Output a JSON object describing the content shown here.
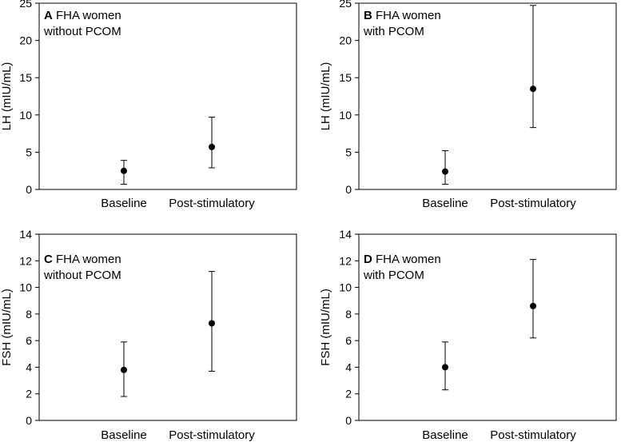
{
  "chart_data": [
    {
      "type": "scatter",
      "panel_letter": "A",
      "title_line1": "FHA women",
      "title_line2": "without PCOM",
      "ylabel": "LH (mIU/mL)",
      "ylim": [
        0,
        25
      ],
      "yticks": [
        "0",
        "5",
        "10",
        "15",
        "20",
        "25"
      ],
      "categories": [
        "Baseline",
        "Post-stimulatory"
      ],
      "points": [
        {
          "y": 2.5,
          "low": 0.7,
          "high": 3.9
        },
        {
          "y": 5.7,
          "low": 2.9,
          "high": 9.7
        }
      ]
    },
    {
      "type": "scatter",
      "panel_letter": "B",
      "title_line1": "FHA women",
      "title_line2": "with PCOM",
      "ylabel": "LH (mIU/mL)",
      "ylim": [
        0,
        25
      ],
      "yticks": [
        "0",
        "5",
        "10",
        "15",
        "20",
        "25"
      ],
      "categories": [
        "Baseline",
        "Post-stimulatory"
      ],
      "points": [
        {
          "y": 2.4,
          "low": 0.7,
          "high": 5.2
        },
        {
          "y": 13.5,
          "low": 8.3,
          "high": 24.7
        }
      ]
    },
    {
      "type": "scatter",
      "panel_letter": "C",
      "title_line1": "FHA women",
      "title_line2": "without PCOM",
      "ylabel": "FSH (mIU/mL)",
      "ylim": [
        0,
        14
      ],
      "yticks": [
        "0",
        "2",
        "4",
        "6",
        "8",
        "10",
        "12",
        "14"
      ],
      "categories": [
        "Baseline",
        "Post-stimulatory"
      ],
      "points": [
        {
          "y": 3.8,
          "low": 1.8,
          "high": 5.9
        },
        {
          "y": 7.3,
          "low": 3.7,
          "high": 11.2
        }
      ]
    },
    {
      "type": "scatter",
      "panel_letter": "D",
      "title_line1": "FHA women",
      "title_line2": "with PCOM",
      "ylabel": "FSH (mIU/mL)",
      "ylim": [
        0,
        14
      ],
      "yticks": [
        "0",
        "2",
        "4",
        "6",
        "8",
        "10",
        "12",
        "14"
      ],
      "categories": [
        "Baseline",
        "Post-stimulatory"
      ],
      "points": [
        {
          "y": 4.0,
          "low": 2.3,
          "high": 5.9
        },
        {
          "y": 8.6,
          "low": 6.2,
          "high": 12.1
        }
      ]
    }
  ]
}
